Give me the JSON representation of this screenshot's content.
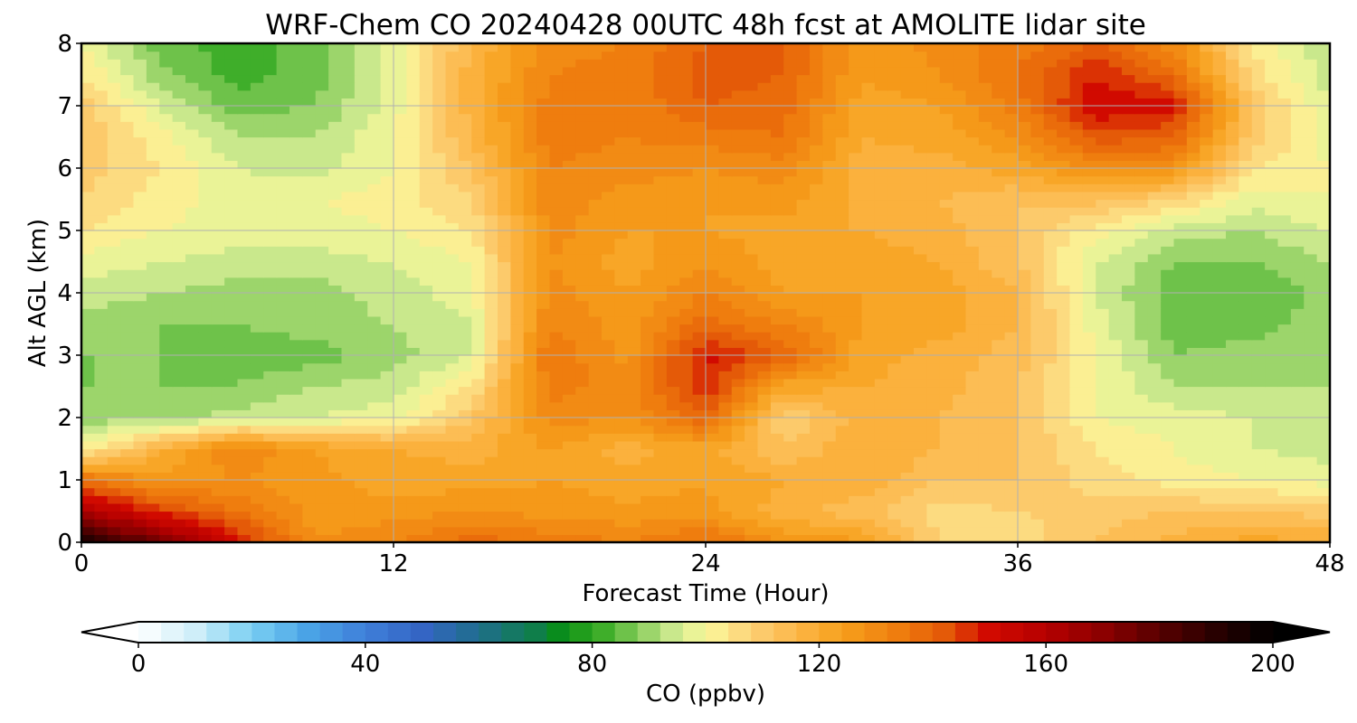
{
  "chart_data": {
    "type": "heatmap",
    "subtype": "filled-contour",
    "title": "WRF-Chem CO  20240428 00UTC 48h fcst at AMOLITE lidar site",
    "xlabel": "Forecast Time (Hour)",
    "ylabel": "Alt AGL (km)",
    "xlim": [
      0,
      48
    ],
    "ylim": [
      0,
      8
    ],
    "x_ticks": [
      "0",
      "12",
      "24",
      "36",
      "48"
    ],
    "y_ticks": [
      "0",
      "1",
      "2",
      "3",
      "4",
      "5",
      "6",
      "7",
      "8"
    ],
    "grid": true,
    "x": [
      0,
      3,
      6,
      9,
      12,
      15,
      18,
      21,
      24,
      27,
      30,
      33,
      36,
      39,
      42,
      45,
      48
    ],
    "y": [
      0,
      0.5,
      1,
      1.5,
      2,
      2.5,
      3,
      3.5,
      4,
      4.5,
      5,
      5.5,
      6,
      6.5,
      7,
      7.5,
      8
    ],
    "z": [
      [
        195,
        175,
        150,
        128,
        132,
        138,
        135,
        132,
        138,
        128,
        125,
        108,
        105,
        112,
        118,
        122,
        120
      ],
      [
        162,
        146,
        136,
        126,
        126,
        128,
        126,
        125,
        125,
        118,
        113,
        106,
        108,
        110,
        112,
        112,
        110
      ],
      [
        138,
        126,
        128,
        125,
        122,
        122,
        124,
        122,
        124,
        120,
        120,
        112,
        112,
        106,
        102,
        100,
        98
      ],
      [
        100,
        118,
        132,
        124,
        120,
        118,
        124,
        118,
        122,
        112,
        120,
        116,
        112,
        104,
        100,
        96,
        94
      ],
      [
        90,
        90,
        94,
        96,
        98,
        112,
        130,
        128,
        140,
        108,
        118,
        116,
        112,
        100,
        98,
        96,
        94
      ],
      [
        88,
        88,
        88,
        92,
        94,
        104,
        134,
        130,
        148,
        122,
        120,
        118,
        112,
        100,
        92,
        92,
        92
      ],
      [
        88,
        88,
        86,
        86,
        90,
        96,
        136,
        126,
        150,
        140,
        122,
        118,
        114,
        100,
        88,
        90,
        92
      ],
      [
        90,
        88,
        88,
        90,
        92,
        96,
        132,
        126,
        138,
        132,
        124,
        122,
        116,
        98,
        86,
        86,
        90
      ],
      [
        94,
        92,
        90,
        90,
        94,
        98,
        130,
        124,
        132,
        124,
        124,
        122,
        116,
        96,
        86,
        84,
        90
      ],
      [
        98,
        96,
        94,
        94,
        96,
        100,
        128,
        122,
        128,
        122,
        122,
        120,
        112,
        96,
        88,
        88,
        92
      ],
      [
        104,
        100,
        98,
        98,
        100,
        104,
        130,
        124,
        124,
        122,
        120,
        118,
        112,
        102,
        94,
        92,
        96
      ],
      [
        108,
        102,
        98,
        100,
        102,
        108,
        130,
        126,
        124,
        126,
        118,
        116,
        112,
        114,
        108,
        98,
        100
      ],
      [
        110,
        104,
        96,
        94,
        100,
        112,
        132,
        130,
        128,
        130,
        118,
        118,
        122,
        130,
        128,
        104,
        100
      ],
      [
        112,
        102,
        92,
        92,
        100,
        116,
        134,
        132,
        134,
        136,
        120,
        122,
        128,
        142,
        140,
        110,
        98
      ],
      [
        110,
        96,
        86,
        88,
        98,
        118,
        134,
        132,
        140,
        138,
        122,
        124,
        134,
        152,
        150,
        112,
        96
      ],
      [
        104,
        90,
        82,
        86,
        98,
        118,
        132,
        134,
        142,
        140,
        124,
        128,
        136,
        148,
        138,
        106,
        94
      ],
      [
        100,
        86,
        82,
        86,
        98,
        116,
        130,
        132,
        140,
        140,
        124,
        130,
        134,
        140,
        130,
        104,
        92
      ]
    ],
    "colorbar": {
      "label": "CO  (ppbv)",
      "range": [
        0,
        200
      ],
      "ticks": [
        "0",
        "40",
        "80",
        "120",
        "160",
        "200"
      ],
      "extend": "both",
      "stops": [
        {
          "value": 0,
          "color": "#ffffff"
        },
        {
          "value": 10,
          "color": "#cfeef9"
        },
        {
          "value": 20,
          "color": "#79cff2"
        },
        {
          "value": 30,
          "color": "#4aa3e6"
        },
        {
          "value": 40,
          "color": "#3f7fd9"
        },
        {
          "value": 50,
          "color": "#3465c4"
        },
        {
          "value": 60,
          "color": "#1f6e8c"
        },
        {
          "value": 70,
          "color": "#0f7e4a"
        },
        {
          "value": 75,
          "color": "#089012"
        },
        {
          "value": 82,
          "color": "#3fae2a"
        },
        {
          "value": 88,
          "color": "#86cc5a"
        },
        {
          "value": 94,
          "color": "#c9e88c"
        },
        {
          "value": 100,
          "color": "#fbf99c"
        },
        {
          "value": 108,
          "color": "#fcd177"
        },
        {
          "value": 116,
          "color": "#fcb648"
        },
        {
          "value": 124,
          "color": "#f7a01c"
        },
        {
          "value": 134,
          "color": "#ef7d0e"
        },
        {
          "value": 142,
          "color": "#e45a08"
        },
        {
          "value": 150,
          "color": "#d10a00"
        },
        {
          "value": 160,
          "color": "#b50000"
        },
        {
          "value": 170,
          "color": "#8c0000"
        },
        {
          "value": 180,
          "color": "#580000"
        },
        {
          "value": 190,
          "color": "#280000"
        },
        {
          "value": 200,
          "color": "#000000"
        }
      ]
    }
  }
}
